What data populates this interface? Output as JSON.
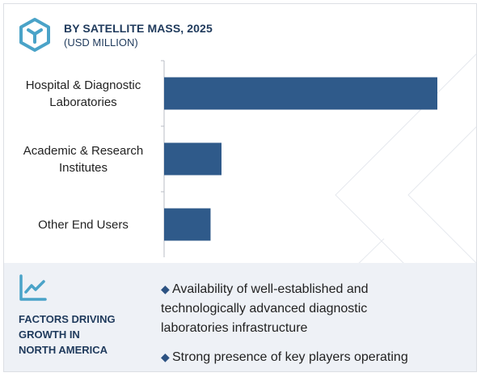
{
  "header": {
    "title": "BY SATELLITE MASS, 2025",
    "subtitle": "(USD MILLION)",
    "icon": "cube-logo-icon"
  },
  "chart_data": {
    "type": "bar",
    "orientation": "horizontal",
    "categories": [
      "Hospital & Diagnostic Laboratories",
      "Academic & Research Institutes",
      "Other End Users"
    ],
    "category_lines": [
      [
        "Hospital & Diagnostic",
        "Laboratories"
      ],
      [
        "Academic & Research",
        "Institutes"
      ],
      [
        "Other End Users"
      ]
    ],
    "values": [
      100,
      21,
      17
    ],
    "value_axis_shown": false,
    "bar_color": "#2f5a8a"
  },
  "factors": {
    "icon": "trend-line-icon",
    "title": "FACTORS DRIVING\nGROWTH IN\nNORTH AMERICA",
    "bullets": [
      "Availability of well-established and\ntechnologically advanced diagnostic\nlaboratories infrastructure",
      "Strong presence of key players operating"
    ],
    "bullet_glyph": "◆"
  },
  "colors": {
    "accent": "#2f5a8a",
    "title": "#1f3a5c",
    "icon": "#4aa3c8",
    "panel": "#eef1f6"
  }
}
